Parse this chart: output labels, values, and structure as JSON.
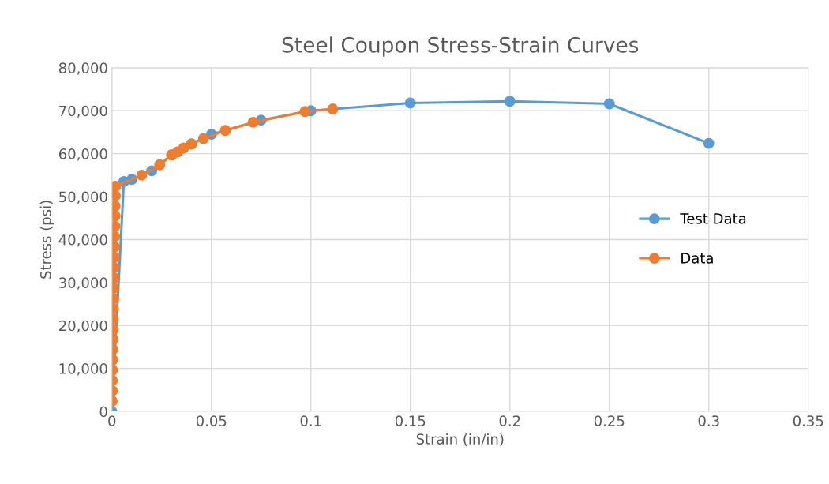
{
  "chart_data": {
    "type": "line",
    "title": "Steel Coupon Stress-Strain Curves",
    "xlabel": "Strain (in/in)",
    "ylabel": "Stress (psi)",
    "xlim": [
      0,
      0.35
    ],
    "xticks": [
      0,
      0.05,
      0.1,
      0.15,
      0.2,
      0.25,
      0.3,
      0.35
    ],
    "ylim": [
      0,
      80000
    ],
    "yticks": [
      {
        "value": 0,
        "label": "0"
      },
      {
        "value": 10000,
        "label": "10,000"
      },
      {
        "value": 20000,
        "label": "20,000"
      },
      {
        "value": 30000,
        "label": "30,000"
      },
      {
        "value": 40000,
        "label": "40,000"
      },
      {
        "value": 50000,
        "label": "50,000"
      },
      {
        "value": 60000,
        "label": "60,000"
      },
      {
        "value": 70000,
        "label": "70,000"
      },
      {
        "value": 80000,
        "label": "80,000"
      }
    ],
    "grid": true,
    "legend": "right",
    "marker": "circle",
    "line_style": "solid",
    "series": [
      {
        "name": "Test Data",
        "color": "#5b9bd5",
        "x": [
          0,
          0.006,
          0.01,
          0.02,
          0.03,
          0.04,
          0.05,
          0.075,
          0.1,
          0.15,
          0.2,
          0.25,
          0.3
        ],
        "values": [
          0,
          53500,
          54000,
          56000,
          59700,
          62300,
          64500,
          67800,
          70000,
          71800,
          72200,
          71600,
          62400
        ]
      },
      {
        "name": "Data",
        "color": "#ed7d31",
        "x": [
          0.0001,
          0.0002,
          0.0002,
          0.0003,
          0.0004,
          0.0005,
          0.0006,
          0.0007,
          0.0007,
          0.0008,
          0.0009,
          0.001,
          0.0011,
          0.0011,
          0.0012,
          0.0013,
          0.0014,
          0.0015,
          0.0016,
          0.0016,
          0.0017,
          0.0018,
          0.015,
          0.024,
          0.03,
          0.033,
          0.036,
          0.04,
          0.046,
          0.057,
          0.071,
          0.097,
          0.111
        ],
        "values": [
          2400,
          4800,
          7200,
          9600,
          12000,
          14400,
          16800,
          19100,
          21500,
          23900,
          26300,
          28700,
          31100,
          33500,
          35900,
          38300,
          40700,
          43100,
          45500,
          47800,
          50200,
          52400,
          55000,
          57400,
          59700,
          60400,
          61300,
          62200,
          63500,
          65400,
          67300,
          69800,
          70400
        ]
      }
    ]
  }
}
